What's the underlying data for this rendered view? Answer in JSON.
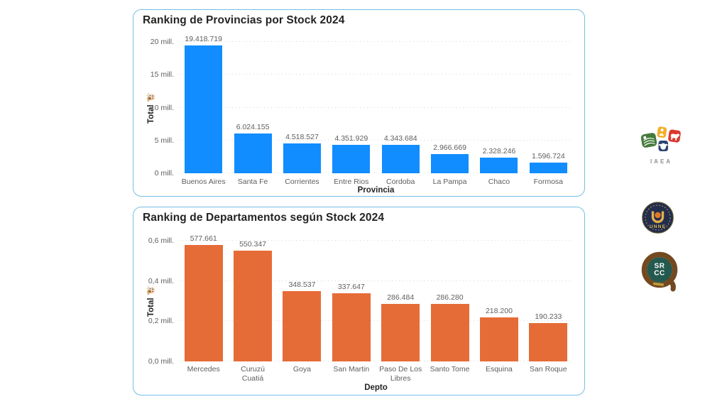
{
  "page": {
    "background": "#ffffff",
    "card_border_color": "#76bfe3"
  },
  "chart_data": [
    {
      "type": "bar",
      "title": "Ranking de Provincias por Stock 2024",
      "xlabel": "Provincia",
      "ylabel": "Total 🐮",
      "bar_color": "#118DFF",
      "grid": "dotted horizontal",
      "value_labels_position": "above bars",
      "legend": "none",
      "ylim": [
        0,
        20000000
      ],
      "yticks": [
        {
          "label": "0 mill.",
          "value": 0
        },
        {
          "label": "5 mill.",
          "value": 5000000
        },
        {
          "label": "10 mill.",
          "value": 10000000
        },
        {
          "label": "15 mill.",
          "value": 15000000
        },
        {
          "label": "20 mill.",
          "value": 20000000
        }
      ],
      "categories": [
        "Buenos Aires",
        "Santa Fe",
        "Corrientes",
        "Entre Rios",
        "Cordoba",
        "La Pampa",
        "Chaco",
        "Formosa"
      ],
      "values": [
        19418719,
        6024155,
        4518527,
        4351929,
        4343684,
        2966669,
        2328246,
        1596724
      ],
      "value_labels": [
        "19.418.719",
        "6.024.155",
        "4.518.527",
        "4.351.929",
        "4.343.684",
        "2.966.669",
        "2.328.246",
        "1.596.724"
      ]
    },
    {
      "type": "bar",
      "title": "Ranking de Departamentos según Stock 2024",
      "xlabel": "Depto",
      "ylabel": "Total 🐮",
      "bar_color": "#E66C37",
      "grid": "dotted horizontal",
      "value_labels_position": "above bars",
      "legend": "none",
      "ylim": [
        0,
        600000
      ],
      "yticks": [
        {
          "label": "0,0 mill.",
          "value": 0
        },
        {
          "label": "0,2 mill.",
          "value": 200000
        },
        {
          "label": "0,4 mill.",
          "value": 400000
        },
        {
          "label": "0,6 mill.",
          "value": 600000
        }
      ],
      "categories": [
        "Mercedes",
        "Curuzú Cuatiá",
        "Goya",
        "San Martin",
        "Paso De Los Libres",
        "Santo Tome",
        "Esquina",
        "San Roque"
      ],
      "values": [
        577661,
        550347,
        348537,
        337647,
        286484,
        286280,
        218200,
        190233
      ],
      "value_labels": [
        "577.661",
        "550.347",
        "348.537",
        "337.647",
        "286.484",
        "286.280",
        "218.200",
        "190.233"
      ]
    }
  ],
  "logos": {
    "iaea_caption": "IAEA",
    "unne_label": "UNNE",
    "srcc_line1": "SR",
    "srcc_line2": "CC"
  }
}
